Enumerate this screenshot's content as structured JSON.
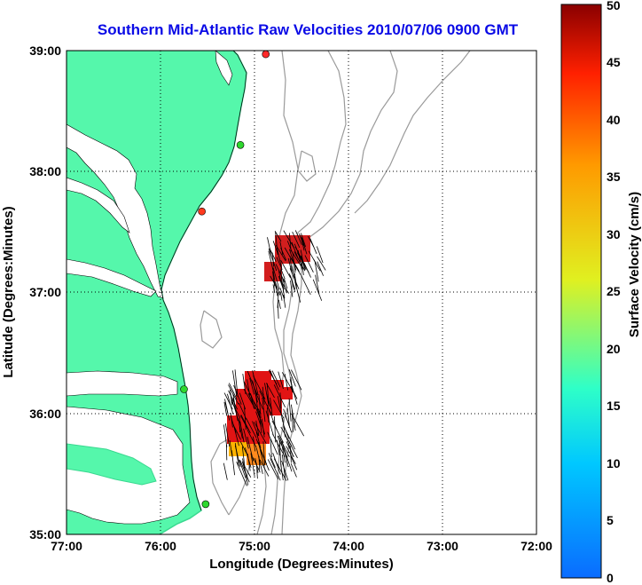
{
  "title": "Southern Mid-Atlantic Raw Velocities 2010/07/06 0900 GMT",
  "map": {
    "lon_range": [
      -77,
      -72
    ],
    "lat_range": [
      35,
      39
    ],
    "x_axis_label": "Longitude (Degrees:Minutes)",
    "y_axis_label": "Latitude (Degrees:Minutes)",
    "x_ticks": [
      "77:00",
      "76:00",
      "75:00",
      "74:00",
      "73:00",
      "72:00"
    ],
    "y_ticks": [
      "35:00",
      "36:00",
      "37:00",
      "38:00",
      "39:00"
    ],
    "land_color": "#55f7ab",
    "grid": true,
    "stations": [
      {
        "lon": -74.88,
        "lat": 38.97,
        "color": "#ff2a2a"
      },
      {
        "lon": -75.15,
        "lat": 38.22,
        "color": "#2ed82e"
      },
      {
        "lon": -75.56,
        "lat": 37.67,
        "color": "#ff3a1e"
      },
      {
        "lon": -75.75,
        "lat": 36.2,
        "color": "#2ed82e"
      },
      {
        "lon": -75.52,
        "lat": 35.25,
        "color": "#2ed82e"
      }
    ]
  },
  "colorbar": {
    "label": "Surface Velocity (cm/s)",
    "min": 0,
    "max": 50,
    "tick_labels": [
      "0",
      "5",
      "10",
      "15",
      "20",
      "25",
      "30",
      "35",
      "40",
      "45",
      "50"
    ],
    "colors": [
      "#0a6cff",
      "#00c8ff",
      "#2effc8",
      "#e0f020",
      "#ff9a00",
      "#ff2000",
      "#8a0000"
    ]
  },
  "velocity_field": {
    "north_patch_color": "#d21e1e",
    "south_patch_color": "#e11414",
    "edge_colors": [
      "#ff8a1e",
      "#ffb400",
      "#ff5a00"
    ]
  }
}
